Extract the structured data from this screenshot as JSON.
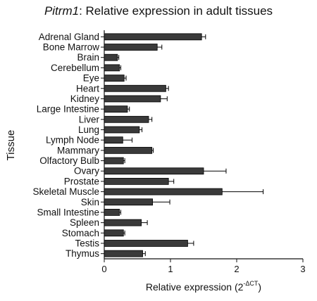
{
  "chart_data": {
    "type": "bar",
    "orientation": "horizontal",
    "title": {
      "gene": "Pitrm1",
      "rest": ": Relative expression in adult tissues"
    },
    "xlabel": {
      "main": "Relative expression (2",
      "superscript": "-ΔCT",
      "close": ")"
    },
    "ylabel": "Tissue",
    "xlim": [
      0,
      3
    ],
    "xticks": [
      0,
      1,
      2,
      3
    ],
    "grid": false,
    "bar_color": "#3a3a3a",
    "categories": [
      "Adrenal Gland",
      "Bone Marrow",
      "Brain",
      "Cerebellum",
      "Eye",
      "Heart",
      "Kidney",
      "Large Intestine",
      "Liver",
      "Lung",
      "Lymph Node",
      "Mammary",
      "Olfactory Bulb",
      "Ovary",
      "Prostate",
      "Skeletal Muscle",
      "Skin",
      "Small Intestine",
      "Spleen",
      "Stomach",
      "Testis",
      "Thymus"
    ],
    "values": [
      1.47,
      0.8,
      0.2,
      0.23,
      0.3,
      0.93,
      0.85,
      0.35,
      0.67,
      0.53,
      0.28,
      0.72,
      0.29,
      1.5,
      0.97,
      1.78,
      0.73,
      0.23,
      0.56,
      0.29,
      1.26,
      0.58
    ],
    "errors": [
      0.06,
      0.07,
      0.02,
      0.02,
      0.03,
      0.04,
      0.1,
      0.03,
      0.05,
      0.04,
      0.14,
      0.02,
      0.02,
      0.34,
      0.08,
      0.62,
      0.26,
      0.02,
      0.09,
      0.02,
      0.09,
      0.04
    ]
  }
}
